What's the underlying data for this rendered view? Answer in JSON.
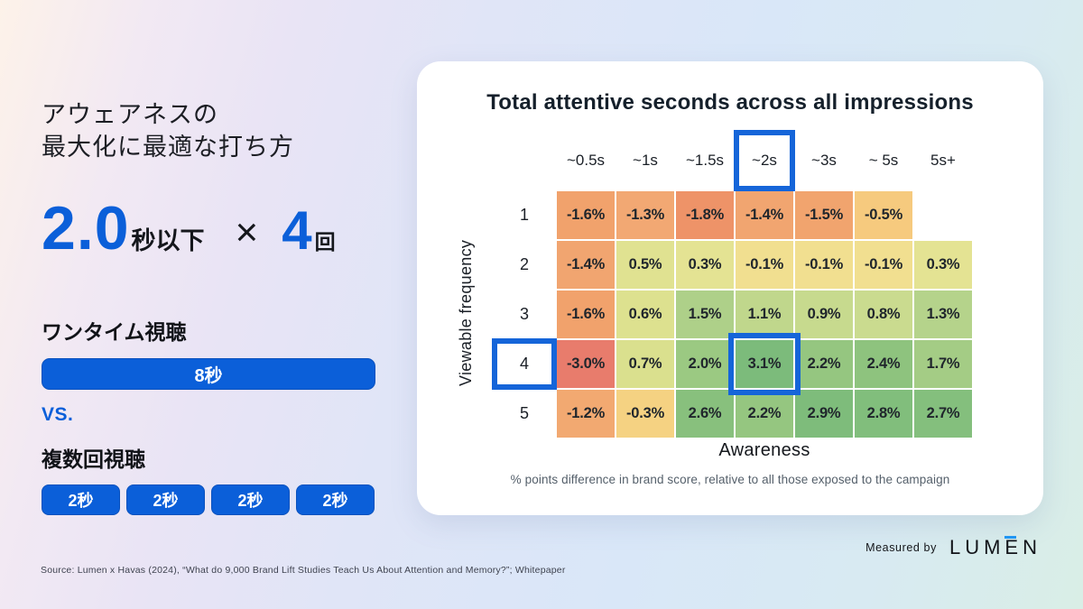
{
  "left_panel": {
    "title_line1": "アウェアネスの",
    "title_line2": "最大化に最適な打ち方",
    "stat": {
      "value": "2.0",
      "value_unit": "秒以下",
      "times_symbol": "×",
      "count": "4",
      "count_unit": "回"
    },
    "one_time": {
      "label": "ワンタイム視聴",
      "bar_label": "8秒"
    },
    "vs_label": "VS.",
    "multi": {
      "label": "複数回視聴",
      "chips": [
        "2秒",
        "2秒",
        "2秒",
        "2秒"
      ]
    }
  },
  "card": {
    "title": "Total attentive seconds across all impressions",
    "x_axis_label": "Awareness",
    "y_axis_label": "Viewable frequency",
    "footnote": "% points difference in brand score, relative to all those exposed to the campaign"
  },
  "chart_data": {
    "type": "heatmap",
    "title": "Total attentive seconds across all impressions",
    "xlabel": "Awareness",
    "ylabel": "Viewable frequency",
    "columns": [
      "~0.5s",
      "~1s",
      "~1.5s",
      "~2s",
      "~3s",
      "~ 5s",
      "5s+"
    ],
    "rows": [
      "1",
      "2",
      "3",
      "4",
      "5"
    ],
    "values_pct": [
      [
        -1.6,
        -1.3,
        -1.8,
        -1.4,
        -1.5,
        -0.5,
        null
      ],
      [
        -1.4,
        0.5,
        0.3,
        -0.1,
        -0.1,
        -0.1,
        0.3
      ],
      [
        -1.6,
        0.6,
        1.5,
        1.1,
        0.9,
        0.8,
        1.3
      ],
      [
        -3.0,
        0.7,
        2.0,
        3.1,
        2.2,
        2.4,
        1.7
      ],
      [
        -1.2,
        -0.3,
        2.6,
        2.2,
        2.9,
        2.8,
        2.7
      ]
    ],
    "cells": [
      [
        {
          "label": "-1.6%",
          "color": "#f1a26c"
        },
        {
          "label": "-1.3%",
          "color": "#f2a873"
        },
        {
          "label": "-1.8%",
          "color": "#ee9368"
        },
        {
          "label": "-1.4%",
          "color": "#f1a570"
        },
        {
          "label": "-1.5%",
          "color": "#f1a46e"
        },
        {
          "label": "-0.5%",
          "color": "#f6ca7e"
        },
        null
      ],
      [
        {
          "label": "-1.4%",
          "color": "#f1a570"
        },
        {
          "label": "0.5%",
          "color": "#e0e291"
        },
        {
          "label": "0.3%",
          "color": "#e4e393"
        },
        {
          "label": "-0.1%",
          "color": "#f1df90"
        },
        {
          "label": "-0.1%",
          "color": "#f1df90"
        },
        {
          "label": "-0.1%",
          "color": "#f1df90"
        },
        {
          "label": "0.3%",
          "color": "#e4e393"
        }
      ],
      [
        {
          "label": "-1.6%",
          "color": "#f1a26c"
        },
        {
          "label": "0.6%",
          "color": "#dde18f"
        },
        {
          "label": "1.5%",
          "color": "#aed089"
        },
        {
          "label": "1.1%",
          "color": "#c0d78c"
        },
        {
          "label": "0.9%",
          "color": "#c7da8e"
        },
        {
          "label": "0.8%",
          "color": "#cadb8f"
        },
        {
          "label": "1.3%",
          "color": "#b5d38b"
        }
      ],
      [
        {
          "label": "-3.0%",
          "color": "#e87c6c"
        },
        {
          "label": "0.7%",
          "color": "#dae08e"
        },
        {
          "label": "2.0%",
          "color": "#9bc982"
        },
        {
          "label": "3.1%",
          "color": "#7cbb7b"
        },
        {
          "label": "2.2%",
          "color": "#95c680"
        },
        {
          "label": "2.4%",
          "color": "#8ec37e"
        },
        {
          "label": "1.7%",
          "color": "#a4cc85"
        }
      ],
      [
        {
          "label": "-1.2%",
          "color": "#f2a971"
        },
        {
          "label": "-0.3%",
          "color": "#f5d282"
        },
        {
          "label": "2.6%",
          "color": "#88c07d"
        },
        {
          "label": "2.2%",
          "color": "#95c680"
        },
        {
          "label": "2.9%",
          "color": "#7ebc7b"
        },
        {
          "label": "2.8%",
          "color": "#81be7c"
        },
        {
          "label": "2.7%",
          "color": "#84bf7d"
        }
      ]
    ],
    "highlighted_column": "~2s",
    "highlighted_row": "4",
    "highlighted_cell": {
      "row": "4",
      "column": "~2s",
      "value": "3.1%"
    },
    "legend_position": "none",
    "grid": false
  },
  "footer": {
    "measured_by": "Measured by",
    "logo_prefix": "LUM",
    "logo_e": "E",
    "logo_suffix": "N",
    "source": "Source: Lumen x Havas (2024), “What do 9,000 Brand Lift Studies Teach Us About Attention and Memory?”; Whitepaper"
  },
  "colors": {
    "primary_blue": "#0b5fd9",
    "highlight_box_blue": "#1565d9",
    "logo_accent_blue": "#2196f3",
    "card_background": "#ffffff",
    "negative_extreme": "#e87c6c",
    "positive_extreme": "#7cbb7b"
  }
}
